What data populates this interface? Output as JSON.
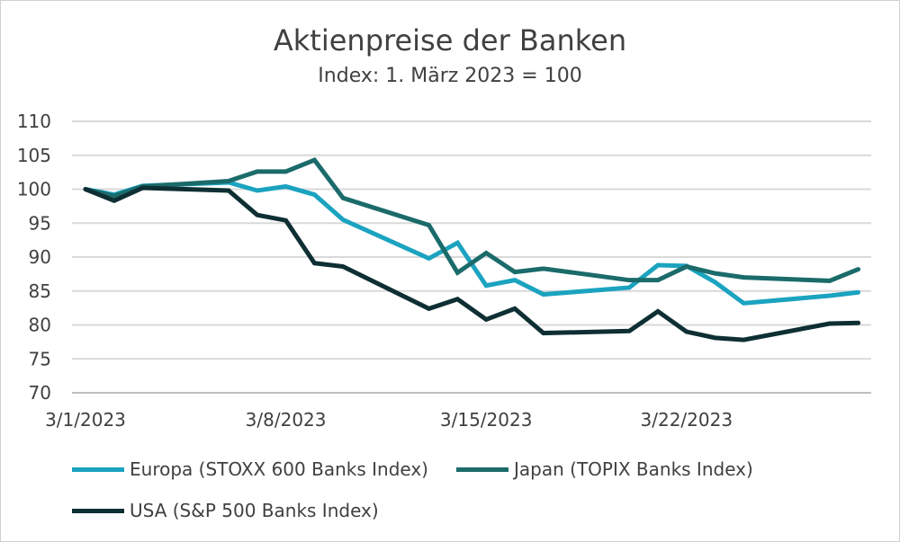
{
  "chart_data": {
    "type": "line",
    "title": "Aktienpreise der Banken",
    "subtitle": "Index: 1. März 2023 = 100",
    "xlabel": "",
    "ylabel": "",
    "ylim": [
      70,
      110
    ],
    "yticks": [
      "70",
      "75",
      "80",
      "85",
      "90",
      "95",
      "100",
      "105",
      "110"
    ],
    "xticks": [
      {
        "label": "3/1/2023",
        "day": 0
      },
      {
        "label": "3/8/2023",
        "day": 7
      },
      {
        "label": "3/15/2023",
        "day": 14
      },
      {
        "label": "3/22/2023",
        "day": 21
      }
    ],
    "grid": true,
    "legend_placement": "bottom",
    "x_days": [
      0,
      1,
      2,
      5,
      6,
      7,
      8,
      9,
      12,
      13,
      14,
      15,
      16,
      19,
      20,
      21,
      22,
      23,
      26,
      27
    ],
    "series": [
      {
        "name": "Europa (STOXX 600 Banks Index)",
        "color": "#1ba3c0",
        "values": [
          100,
          99.2,
          100.5,
          101,
          99.8,
          100.4,
          99.2,
          95.5,
          89.8,
          92.1,
          85.8,
          86.6,
          84.5,
          85.5,
          88.8,
          88.7,
          86.3,
          83.2,
          84.3,
          84.8
        ]
      },
      {
        "name": "Japan (TOPIX Banks Index)",
        "color": "#1b6b6b",
        "values": [
          100,
          99,
          100.4,
          101.2,
          102.6,
          102.6,
          104.3,
          98.7,
          94.7,
          87.7,
          90.6,
          87.8,
          88.3,
          86.6,
          86.6,
          88.6,
          87.6,
          87.0,
          86.5,
          88.2
        ]
      },
      {
        "name": "USA (S&P 500 Banks Index)",
        "color": "#0e2f33",
        "values": [
          100,
          98.3,
          100.2,
          99.8,
          96.2,
          95.4,
          89.1,
          88.6,
          82.4,
          83.8,
          80.8,
          82.4,
          78.8,
          79.1,
          82.0,
          79.0,
          78.1,
          77.8,
          80.2,
          80.3
        ]
      }
    ]
  }
}
